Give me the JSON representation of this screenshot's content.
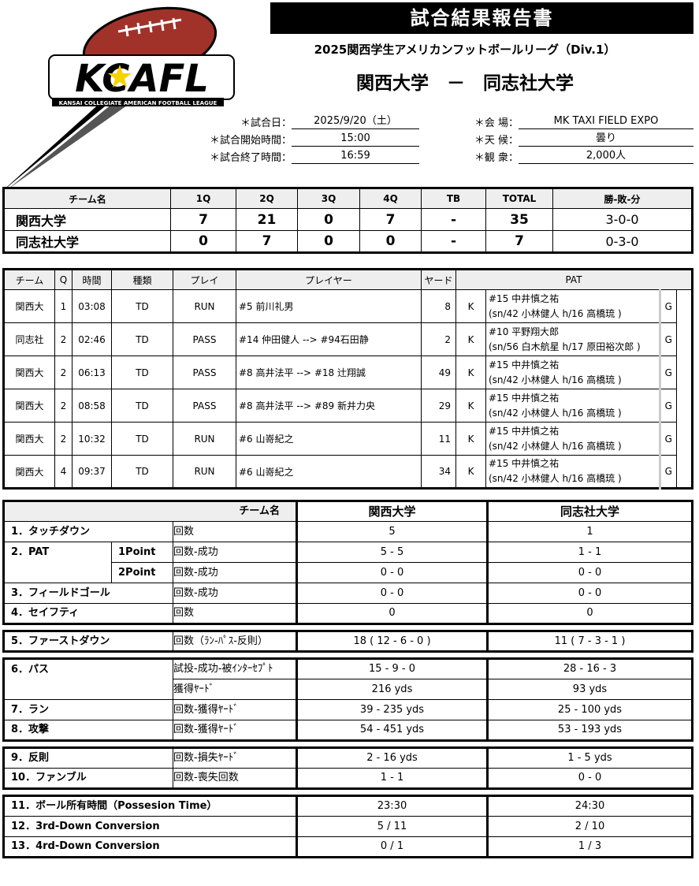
{
  "header": {
    "title": "試合結果報告書",
    "league": "2025関西学生アメリカンフットボールリーグ（Div.1）",
    "matchup": "関西大学　－　同志社大学",
    "logo_text": "KCAFL",
    "logo_sub": "KANSAI COLLEGIATE AMERICAN FOOTBALL LEAGUE"
  },
  "info": {
    "left": [
      {
        "label": "＊試合日：",
        "value": "2025/9/20（土）"
      },
      {
        "label": "＊試合開始時間：",
        "value": "15:00"
      },
      {
        "label": "＊試合終了時間：",
        "value": "16:59"
      }
    ],
    "right": [
      {
        "label": "＊会 場：",
        "value": "MK TAXI FIELD EXPO"
      },
      {
        "label": "＊天 候：",
        "value": "曇り"
      },
      {
        "label": "＊観 衆：",
        "value": "2,000人"
      }
    ]
  },
  "score": {
    "headers": [
      "チーム名",
      "1Q",
      "2Q",
      "3Q",
      "4Q",
      "TB",
      "TOTAL",
      "勝-敗-分"
    ],
    "rows": [
      [
        "関西大学",
        "7",
        "21",
        "0",
        "7",
        "-",
        "35",
        "3-0-0"
      ],
      [
        "同志社大学",
        "0",
        "7",
        "0",
        "0",
        "-",
        "7",
        "0-3-0"
      ]
    ]
  },
  "plays": {
    "headers": [
      "チーム",
      "Q",
      "時間",
      "種類",
      "プレイ",
      "プレイヤー",
      "ヤード",
      "PAT"
    ],
    "rows": [
      [
        "関西大",
        "1",
        "03:08",
        "TD",
        "RUN",
        "#5 前川礼男",
        "8",
        "K",
        "#15 中井慎之祐",
        "(sn/42 小林健人 h/16 高橋琉 )",
        "G"
      ],
      [
        "同志社",
        "2",
        "02:46",
        "TD",
        "PASS",
        "#14 仲田健人 --> #94石田静",
        "2",
        "K",
        "#10 平野翔大郎",
        "(sn/56 白木航星 h/17 原田裕次郎 )",
        "G"
      ],
      [
        "関西大",
        "2",
        "06:13",
        "TD",
        "PASS",
        "#8 高井法平 --> #18 辻翔誠",
        "49",
        "K",
        "#15 中井慎之祐",
        "(sn/42 小林健人 h/16 高橋琉 )",
        "G"
      ],
      [
        "関西大",
        "2",
        "08:58",
        "TD",
        "PASS",
        "#8 高井法平 --> #89 新井力央",
        "29",
        "K",
        "#15 中井慎之祐",
        "(sn/42 小林健人 h/16 高橋琉 )",
        "G"
      ],
      [
        "関西大",
        "2",
        "10:32",
        "TD",
        "RUN",
        "#6 山嵜紀之",
        "11",
        "K",
        "#15 中井慎之祐",
        "(sn/42 小林健人 h/16 高橋琉 )",
        "G"
      ],
      [
        "関西大",
        "4",
        "09:37",
        "TD",
        "RUN",
        "#6 山嵜紀之",
        "34",
        "K",
        "#15 中井慎之祐",
        "(sn/42 小林健人 h/16 高橋琉 )",
        "G"
      ]
    ]
  },
  "stats": {
    "team_label": "チーム名",
    "team1": "関西大学",
    "team2": "同志社大学",
    "rows": [
      {
        "label": "1．タッチダウン",
        "sub": "",
        "unit": "回数",
        "v1": "5",
        "v2": "1"
      },
      {
        "label": "2．PAT",
        "sub": "1Point",
        "unit": "回数-成功",
        "v1": "5 - 5",
        "v2": "1 - 1"
      },
      {
        "label": "",
        "sub": "2Point",
        "unit": "回数-成功",
        "v1": "0 - 0",
        "v2": "0 - 0"
      },
      {
        "label": "3．フィールドゴール",
        "sub": "",
        "unit": "回数-成功",
        "v1": "0 - 0",
        "v2": "0 - 0"
      },
      {
        "label": "4．セイフティ",
        "sub": "",
        "unit": "回数",
        "v1": "0",
        "v2": "0"
      },
      {
        "label": "5．ファーストダウン",
        "sub": "",
        "unit": "回数（ﾗﾝ-ﾊﾟｽ-反則）",
        "v1": "18 ( 12 - 6 - 0 )",
        "v2": "11 ( 7 - 3 - 1 )"
      },
      {
        "label": "6．パス",
        "sub": "",
        "unit": "試投-成功-被ｲﾝﾀｰｾﾌﾟﾄ",
        "v1": "15 - 9 - 0",
        "v2": "28 - 16 - 3"
      },
      {
        "label": "",
        "sub": "",
        "unit": "獲得ﾔｰﾄﾞ",
        "v1": "216 yds",
        "v2": "93 yds"
      },
      {
        "label": "7．ラン",
        "sub": "",
        "unit": "回数-獲得ﾔｰﾄﾞ",
        "v1": "39 - 235 yds",
        "v2": "25 - 100 yds"
      },
      {
        "label": "8．攻撃",
        "sub": "",
        "unit": "回数-獲得ﾔｰﾄﾞ",
        "v1": "54 - 451 yds",
        "v2": "53 - 193 yds"
      },
      {
        "label": "9．反則",
        "sub": "",
        "unit": "回数-損失ﾔｰﾄﾞ",
        "v1": "2 - 16 yds",
        "v2": "1 - 5 yds"
      },
      {
        "label": "10．ファンブル",
        "sub": "",
        "unit": "回数-喪失回数",
        "v1": "1 - 1",
        "v2": "0 - 0"
      },
      {
        "label": "11．ボール所有時間（Possesion Time）",
        "sub": "",
        "unit": "",
        "v1": "23:30",
        "v2": "24:30"
      },
      {
        "label": "12．3rd-Down Conversion",
        "sub": "",
        "unit": "",
        "v1": "5 / 11",
        "v2": "2 / 10"
      },
      {
        "label": "13．4rd-Down Conversion",
        "sub": "",
        "unit": "",
        "v1": "0 / 1",
        "v2": "1 / 3"
      }
    ]
  },
  "colors": {
    "ball": "#a0322a",
    "accent": "#f5d300"
  }
}
